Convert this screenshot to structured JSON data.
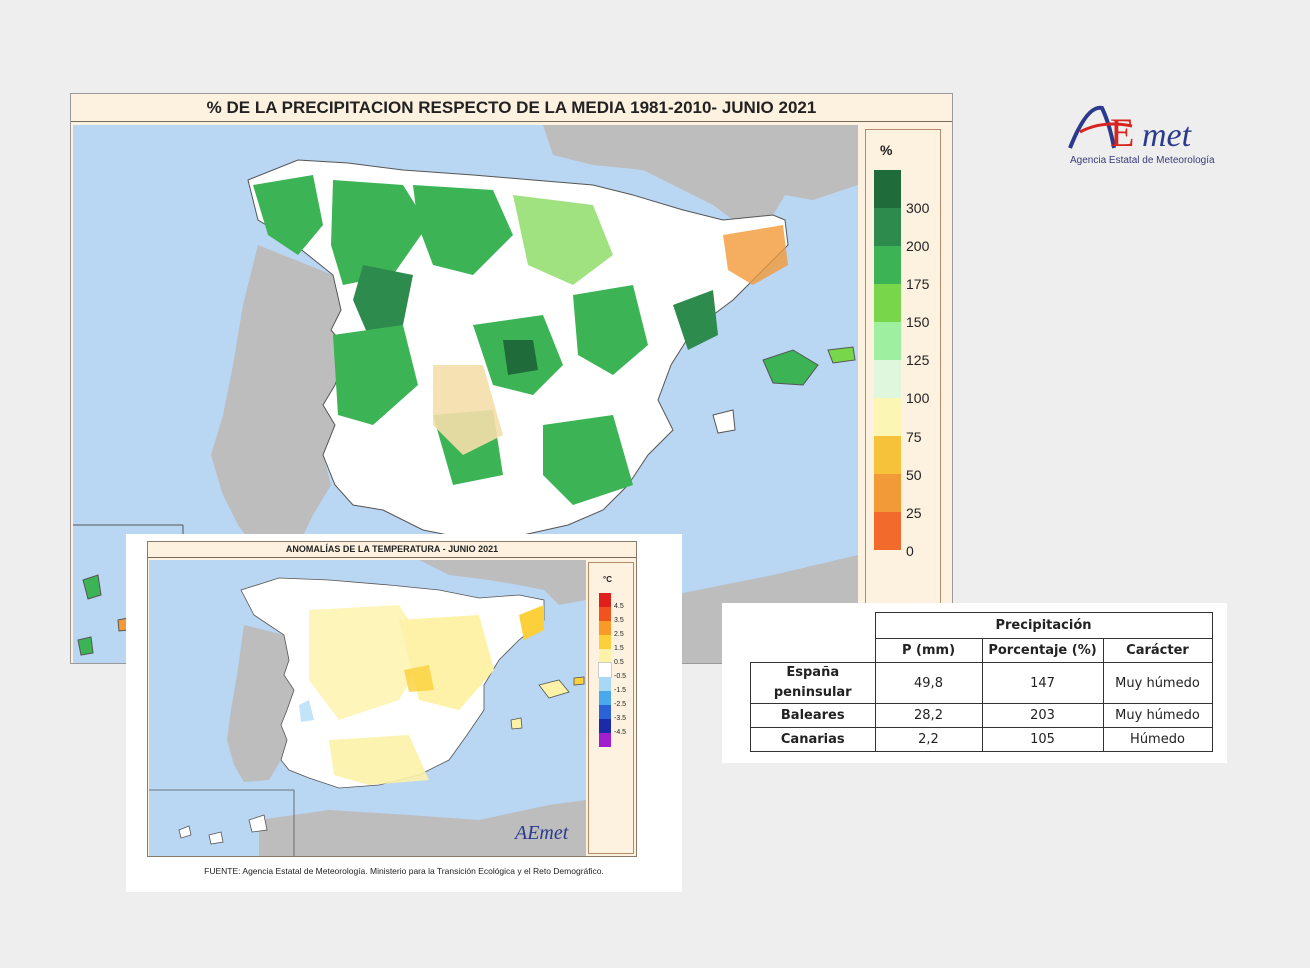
{
  "precip_map": {
    "title": "% DE LA PRECIPITACION RESPECTO DE LA MEDIA 1981-2010- JUNIO 2021",
    "legend": {
      "unit": "%",
      "labels": [
        "300",
        "200",
        "175",
        "150",
        "125",
        "100",
        "75",
        "50",
        "25",
        "0"
      ],
      "colors": [
        "#1f6b3a",
        "#2e8b4e",
        "#3cb455",
        "#78d64a",
        "#9ef0a0",
        "#dff7dc",
        "#fbf6b4",
        "#f6c23a",
        "#f39a38",
        "#f36b2c"
      ]
    }
  },
  "temp_map": {
    "title": "ANOMALÍAS DE LA TEMPERATURA - JUNIO 2021",
    "legend": {
      "unit": "°C",
      "labels": [
        "4.5",
        "3.5",
        "2.5",
        "1.5",
        "0.5",
        "-0.5",
        "-1.5",
        "-2.5",
        "-3.5",
        "-4.5"
      ],
      "colors": [
        "#e0201c",
        "#f2521e",
        "#f79a28",
        "#fbd03a",
        "#fdf2a8",
        "#ffffff",
        "#a8d8f6",
        "#4aa8ec",
        "#2a62d8",
        "#1a2aa8",
        "#a020d0"
      ]
    },
    "source": "FUENTE: Agencia Estatal de Meteorología. Ministerio para la Transición Ecológica y el Reto Demográfico.",
    "logo_text": "AEmet"
  },
  "precip_table": {
    "group_header": "Precipitación",
    "columns": [
      "P (mm)",
      "Porcentaje (%)",
      "Carácter"
    ],
    "rows": [
      {
        "region": "España peninsular",
        "p_mm": "49,8",
        "porcentaje": "147",
        "caracter": "Muy húmedo"
      },
      {
        "region": "Baleares",
        "p_mm": "28,2",
        "porcentaje": "203",
        "caracter": "Muy húmedo"
      },
      {
        "region": "Canarias",
        "p_mm": "2,2",
        "porcentaje": "105",
        "caracter": "Húmedo"
      }
    ]
  },
  "brand": {
    "logo_text": "AEmet",
    "logo_subtitle": "Agencia Estatal de Meteorología"
  }
}
